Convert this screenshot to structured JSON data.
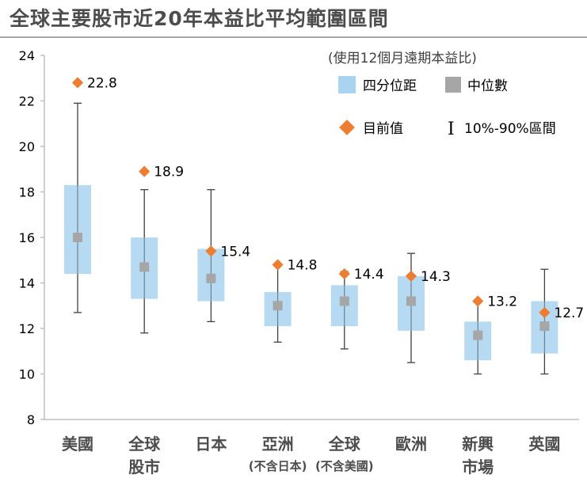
{
  "title": "全球主要股市近20年本益比平均範圍區間",
  "chart_data": {
    "type": "boxplot",
    "subtitle": "(使用12個月遠期本益比)",
    "ylim": [
      8,
      24
    ],
    "yticks": [
      8,
      10,
      12,
      14,
      16,
      18,
      20,
      22,
      24
    ],
    "grid": false,
    "legend": {
      "placement": "top-right",
      "iqr": "四分位距",
      "median": "中位數",
      "current": "目前值",
      "range": "10%-90%區間",
      "range_symbol": "I"
    },
    "categories": [
      {
        "line1": "美國",
        "line2": ""
      },
      {
        "line1": "全球",
        "line2": "股市"
      },
      {
        "line1": "日本",
        "line2": ""
      },
      {
        "line1": "亞洲",
        "line2": "(不含日本)"
      },
      {
        "line1": "全球",
        "line2": "(不含美國)"
      },
      {
        "line1": "歐洲",
        "line2": ""
      },
      {
        "line1": "新興",
        "line2": "市場"
      },
      {
        "line1": "英國",
        "line2": ""
      }
    ],
    "p10": [
      12.7,
      11.8,
      12.3,
      11.4,
      11.1,
      10.5,
      10.0,
      10.0
    ],
    "q1": [
      14.4,
      13.3,
      13.2,
      12.1,
      12.1,
      11.9,
      10.6,
      10.9
    ],
    "median": [
      16.0,
      14.7,
      14.2,
      13.0,
      13.2,
      13.2,
      11.7,
      12.1
    ],
    "q3": [
      18.3,
      16.0,
      15.5,
      13.6,
      13.9,
      14.3,
      12.3,
      13.2
    ],
    "p90": [
      21.9,
      18.1,
      18.1,
      14.8,
      14.5,
      15.3,
      13.2,
      14.6
    ],
    "current": [
      22.8,
      18.9,
      15.4,
      14.8,
      14.4,
      14.3,
      13.2,
      12.7
    ],
    "current_labels": [
      "22.8",
      "18.9",
      "15.4",
      "14.8",
      "14.4",
      "14.3",
      "13.2",
      "12.7"
    ],
    "colors": {
      "iqr": "#a9d3f0",
      "median": "#a6a6a6",
      "current": "#ed7d31",
      "whisker": "#404040",
      "axis": "#bfbfbf"
    }
  }
}
